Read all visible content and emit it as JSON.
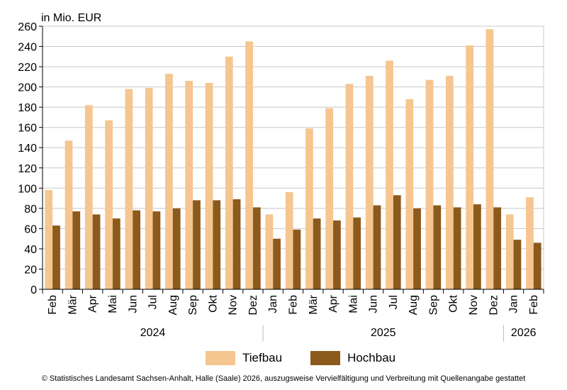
{
  "chart_data": {
    "type": "bar",
    "ylabel": "in Mio. EUR",
    "ylim": [
      0,
      260
    ],
    "yticks": [
      0,
      20,
      40,
      60,
      80,
      100,
      120,
      140,
      160,
      180,
      200,
      220,
      240,
      260
    ],
    "grid": true,
    "categories": [
      "Feb",
      "Mär",
      "Apr",
      "Mai",
      "Jun",
      "Jul",
      "Aug",
      "Sep",
      "Okt",
      "Nov",
      "Dez",
      "Jan",
      "Feb",
      "Mär",
      "Apr",
      "Mai",
      "Jun",
      "Jul",
      "Aug",
      "Sep",
      "Okt",
      "Nov",
      "Dez",
      "Jan",
      "Feb"
    ],
    "year_groups": [
      {
        "label": "2024",
        "count": 11
      },
      {
        "label": "2025",
        "count": 12
      },
      {
        "label": "2026",
        "count": 2
      }
    ],
    "series": [
      {
        "name": "Tiefbau",
        "color": "#f5c690",
        "values": [
          98,
          147,
          182,
          167,
          198,
          199,
          213,
          206,
          204,
          230,
          245,
          74,
          96,
          159,
          179,
          203,
          211,
          226,
          188,
          207,
          211,
          241,
          257,
          74,
          91
        ]
      },
      {
        "name": "Hochbau",
        "color": "#8b5a1c",
        "values": [
          63,
          77,
          74,
          70,
          78,
          77,
          80,
          88,
          88,
          89,
          81,
          50,
          59,
          70,
          68,
          71,
          83,
          93,
          80,
          83,
          81,
          84,
          81,
          49,
          46
        ]
      }
    ],
    "legend_position": "bottom"
  },
  "footer": "© Statistisches Landesamt Sachsen-Anhalt, Halle (Saale) 2026, auszugsweise Vervielfältigung und Verbreitung mit Quellenangabe gestattet"
}
